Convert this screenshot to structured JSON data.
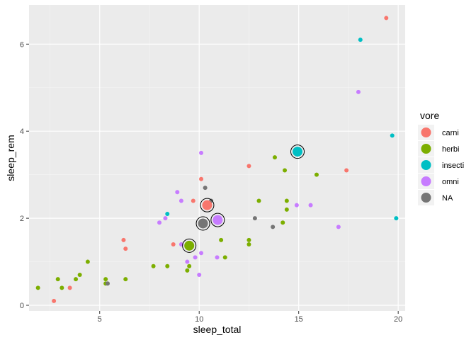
{
  "chart_data": {
    "type": "scatter",
    "xlabel": "sleep_total",
    "ylabel": "sleep_rem",
    "xlim": [
      1.45,
      20.35
    ],
    "ylim": [
      -0.13,
      6.9
    ],
    "x_ticks": [
      5,
      10,
      15,
      20
    ],
    "y_ticks": [
      0,
      2,
      4,
      6
    ],
    "grid": true,
    "legend_title": "vore",
    "legend_position": "right",
    "series": [
      {
        "name": "carni",
        "color": "#F8766D",
        "points": [
          [
            2.7,
            0.1
          ],
          [
            3.5,
            0.4
          ],
          [
            6.2,
            1.5
          ],
          [
            6.3,
            1.3
          ],
          [
            8.7,
            1.4
          ],
          [
            9.7,
            2.4
          ],
          [
            10.1,
            2.9
          ],
          [
            12.5,
            3.2
          ],
          [
            17.4,
            3.1
          ],
          [
            19.4,
            6.6
          ]
        ],
        "summary": [
          10.4,
          2.3
        ]
      },
      {
        "name": "herbi",
        "color": "#7CAE00",
        "points": [
          [
            1.9,
            0.4
          ],
          [
            2.9,
            0.6
          ],
          [
            3.1,
            0.4
          ],
          [
            3.8,
            0.6
          ],
          [
            4.0,
            0.7
          ],
          [
            4.4,
            1.0
          ],
          [
            5.3,
            0.6
          ],
          [
            5.3,
            0.5
          ],
          [
            6.3,
            0.6
          ],
          [
            7.7,
            0.9
          ],
          [
            8.4,
            0.9
          ],
          [
            9.4,
            0.8
          ],
          [
            9.5,
            0.9
          ],
          [
            11.1,
            1.5
          ],
          [
            11.3,
            1.1
          ],
          [
            12.5,
            1.5
          ],
          [
            12.5,
            1.4
          ],
          [
            13.0,
            2.4
          ],
          [
            13.8,
            3.4
          ],
          [
            14.2,
            1.9
          ],
          [
            14.3,
            3.1
          ],
          [
            14.4,
            2.4
          ],
          [
            14.4,
            2.2
          ],
          [
            15.9,
            3.0
          ]
        ],
        "summary": [
          9.5,
          1.37
        ]
      },
      {
        "name": "insecti",
        "color": "#00BFC4",
        "points": [
          [
            8.4,
            2.1
          ],
          [
            18.1,
            6.1
          ],
          [
            19.7,
            3.9
          ],
          [
            19.9,
            2.0
          ]
        ],
        "summary": [
          14.94,
          3.53
        ]
      },
      {
        "name": "omni",
        "color": "#C77CFF",
        "points": [
          [
            8.0,
            1.9
          ],
          [
            8.3,
            2.0
          ],
          [
            8.9,
            2.6
          ],
          [
            9.1,
            2.4
          ],
          [
            9.1,
            1.4
          ],
          [
            9.4,
            1.0
          ],
          [
            9.8,
            1.1
          ],
          [
            10.0,
            0.7
          ],
          [
            10.1,
            1.2
          ],
          [
            10.1,
            3.5
          ],
          [
            10.9,
            1.1
          ],
          [
            14.9,
            2.3
          ],
          [
            15.6,
            2.3
          ],
          [
            17.0,
            1.8
          ],
          [
            18.0,
            4.9
          ]
        ],
        "summary": [
          10.93,
          1.96
        ]
      },
      {
        "name": "NA",
        "color": "#757575",
        "points": [
          [
            5.4,
            0.5
          ],
          [
            10.3,
            2.7
          ],
          [
            10.6,
            2.4
          ],
          [
            12.8,
            2.0
          ],
          [
            13.7,
            1.8
          ]
        ],
        "summary": [
          10.19,
          1.88
        ]
      }
    ]
  }
}
